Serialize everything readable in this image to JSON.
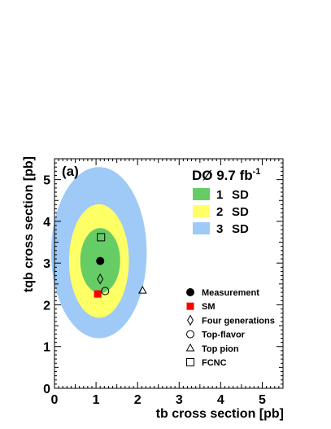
{
  "chart_data": {
    "type": "scatter",
    "panel_label": "(a)",
    "experiment": {
      "label": "DØ 9.7 fb",
      "superscript": "-1"
    },
    "xlabel": "tb cross section [pb]",
    "ylabel": "tqb cross section [pb]",
    "xlim": [
      0,
      5.5
    ],
    "ylim": [
      0,
      5.5
    ],
    "x_ticks": [
      "0",
      "1",
      "2",
      "3",
      "4",
      "5"
    ],
    "y_ticks": [
      "0",
      "1",
      "2",
      "3",
      "4",
      "5"
    ],
    "contours": [
      {
        "name": "3 SD",
        "label_num": "3",
        "label_unit": "SD",
        "color": "#9fcaf7",
        "center": [
          1.07,
          3.25
        ],
        "half_width": 1.15,
        "half_height": 2.05
      },
      {
        "name": "2 SD",
        "label_num": "2",
        "label_unit": "SD",
        "color": "#ffff66",
        "center": [
          1.07,
          3.05
        ],
        "half_width": 0.72,
        "half_height": 1.36
      },
      {
        "name": "1 SD",
        "label_num": "1",
        "label_unit": "SD",
        "color": "#66cc66",
        "center": [
          1.1,
          3.06
        ],
        "half_width": 0.48,
        "half_height": 0.78
      }
    ],
    "contour_legend_order": [
      2,
      1,
      0
    ],
    "points": [
      {
        "name": "Measurement",
        "marker": "filled-circle",
        "color": "#000000",
        "x": 1.1,
        "y": 3.05
      },
      {
        "name": "SM",
        "marker": "filled-square",
        "color": "#ff0000",
        "x": 1.04,
        "y": 2.26
      },
      {
        "name": "Four generations",
        "marker": "diamond",
        "color": "#000000",
        "x": 1.1,
        "y": 2.62
      },
      {
        "name": "Top-flavor",
        "marker": "open-circle",
        "color": "#000000",
        "x": 1.22,
        "y": 2.33
      },
      {
        "name": "Top pion",
        "marker": "open-triangle",
        "color": "#000000",
        "x": 2.12,
        "y": 2.34
      },
      {
        "name": "FCNC",
        "marker": "open-square",
        "color": "#000000",
        "x": 1.12,
        "y": 3.62
      }
    ]
  }
}
